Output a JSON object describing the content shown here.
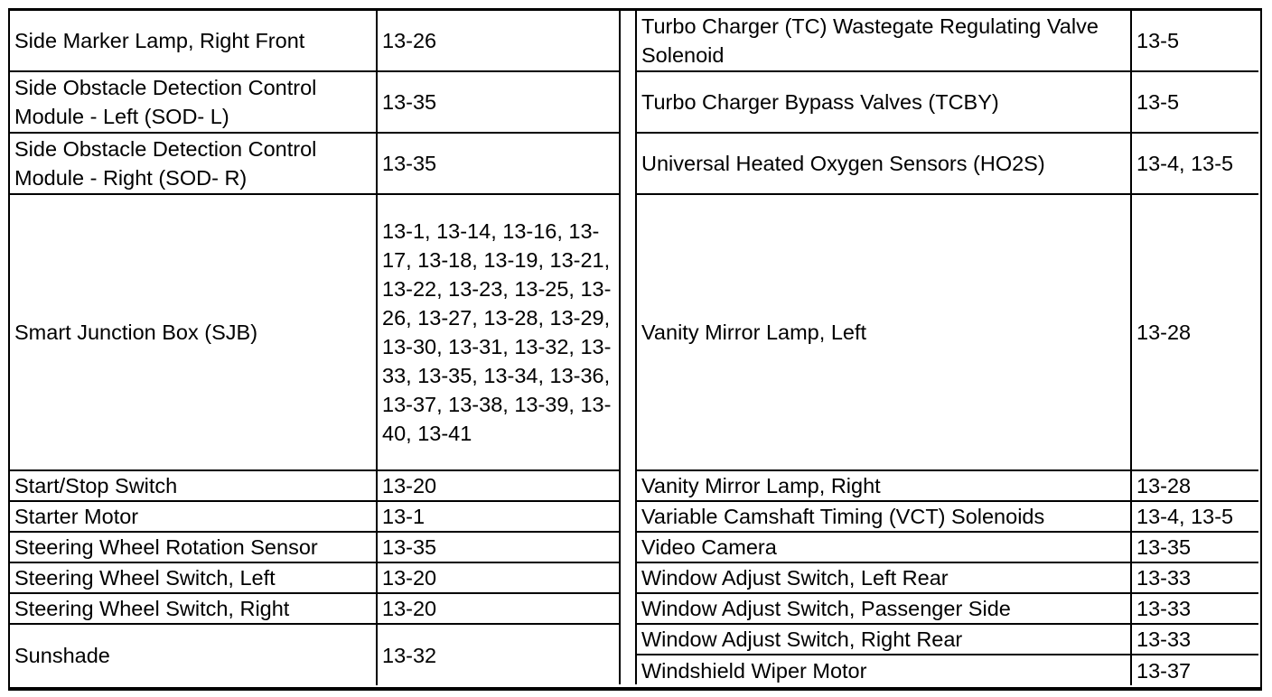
{
  "left_table": {
    "rows": [
      {
        "component": "Side Marker Lamp, Right Front",
        "pages": "13-26"
      },
      {
        "component": "Side Obstacle Detection Control Module - Left (SOD- L)",
        "pages": "13-35"
      },
      {
        "component": "Side Obstacle Detection Control Module - Right (SOD- R)",
        "pages": "13-35"
      },
      {
        "component": "Smart Junction Box (SJB)",
        "pages": "13-1, 13-14, 13-16, 13-17, 13-18, 13-19, 13-21, 13-22, 13-23, 13-25, 13-26, 13-27, 13-28, 13-29, 13-30, 13-31, 13-32, 13-33, 13-35, 13-34, 13-36, 13-37, 13-38, 13-39, 13-40, 13-41"
      },
      {
        "component": "Start/Stop Switch",
        "pages": "13-20"
      },
      {
        "component": "Starter Motor",
        "pages": "13-1"
      },
      {
        "component": "Steering Wheel Rotation Sensor",
        "pages": "13-35"
      },
      {
        "component": "Steering Wheel Switch, Left",
        "pages": "13-20"
      },
      {
        "component": "Steering Wheel Switch, Right",
        "pages": "13-20"
      },
      {
        "component": "Sunshade",
        "pages": "13-32"
      }
    ]
  },
  "right_table": {
    "rows": [
      {
        "component": "Turbo Charger (TC) Wastegate Regulating Valve Solenoid",
        "pages": "13-5"
      },
      {
        "component": "Turbo Charger Bypass Valves (TCBY)",
        "pages": "13-5"
      },
      {
        "component": "Universal Heated Oxygen Sensors (HO2S)",
        "pages": "13-4, 13-5"
      },
      {
        "component": "Vanity Mirror Lamp, Left",
        "pages": "13-28"
      },
      {
        "component": "Vanity Mirror Lamp, Right",
        "pages": "13-28"
      },
      {
        "component": "Variable Camshaft Timing (VCT) Solenoids",
        "pages": "13-4, 13-5"
      },
      {
        "component": "Video Camera",
        "pages": "13-35"
      },
      {
        "component": "Window Adjust Switch, Left Rear",
        "pages": "13-33"
      },
      {
        "component": "Window Adjust Switch, Passenger Side",
        "pages": "13-33"
      },
      {
        "component": "Window Adjust Switch, Right Rear",
        "pages": "13-33"
      },
      {
        "component": "Windshield Wiper Motor",
        "pages": "13-37"
      }
    ]
  }
}
